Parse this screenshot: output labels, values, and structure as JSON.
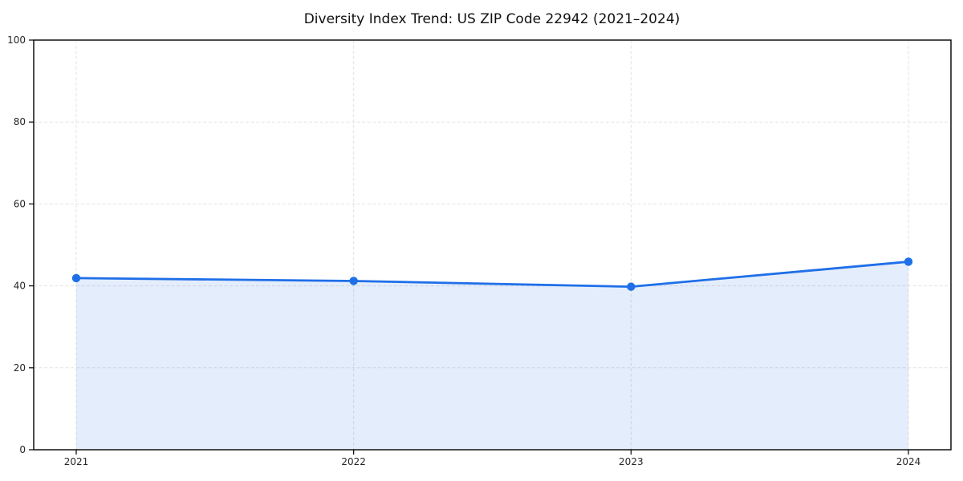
{
  "title": "Diversity Index Trend: US ZIP Code 22942 (2021–2024)",
  "chart_data": {
    "type": "line",
    "title": "Diversity Index Trend: US ZIP Code 22942 (2021–2024)",
    "x": [
      "2021",
      "2022",
      "2023",
      "2024"
    ],
    "series": [
      {
        "name": "Diversity Index",
        "values": [
          41.9,
          41.2,
          39.8,
          45.9
        ]
      }
    ],
    "xlabel": "",
    "ylabel": "",
    "ylim": [
      0,
      100
    ],
    "yticks": [
      0,
      20,
      40,
      60,
      80,
      100
    ],
    "xticks": [
      "2021",
      "2022",
      "2023",
      "2024"
    ],
    "grid": true,
    "grid_style": "dashed",
    "legend_position": "none",
    "area_fill_to_zero": true,
    "marker": "circle",
    "colors": {
      "line": "#1f6fe8",
      "marker": "#1f6fe8",
      "area_fill": "rgba(31,111,232,0.12)",
      "grid": "#e2e2e2",
      "spine": "#000000",
      "tick_label": "#262626",
      "title": "#111111",
      "background": "#ffffff"
    }
  }
}
